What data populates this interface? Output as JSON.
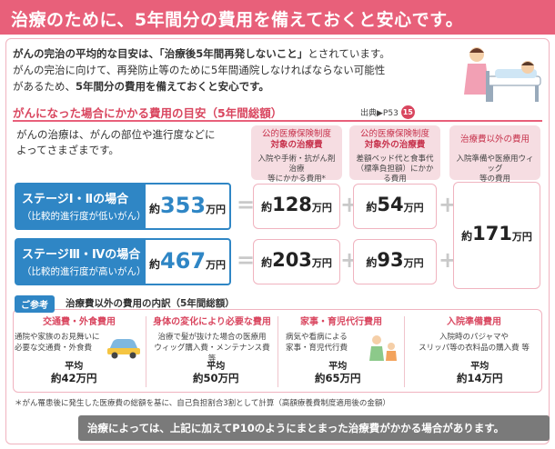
{
  "header": {
    "title": "治療のために、5年間分の費用を備えておくと安心です。"
  },
  "intro": {
    "line1_prefix": "がんの完治の平均的な目安は、",
    "line1_bold": "「治療後5年間再発しないこと」",
    "line1_suffix": "とされています。",
    "line2": "がんの完治に向けて、再発防止等のために5年間通院しなければならない可能性",
    "line3_prefix": "があるため、",
    "line3_bold": "5年間分の費用を備えておくと安心です。"
  },
  "section": {
    "title": "がんになった場合にかかる費用の目安（5年間総額）",
    "source_label": "出典▶P53",
    "source_badge": "15"
  },
  "desc": {
    "line1": "がんの治療は、がんの部位や進行度などに",
    "line2": "よってさまざまです。"
  },
  "columns": [
    {
      "title_line1": "公的医療保険制度",
      "title_line2": "対象の治療費",
      "sub_line1": "入院や手術・抗がん剤治療",
      "sub_line2": "等にかかる費用*"
    },
    {
      "title_line1": "公的医療保険制度",
      "title_line2": "対象外の治療費",
      "sub_line1": "差額ベッド代と食事代",
      "sub_line2": "（標準負担額）にかかる費用"
    },
    {
      "title_line1": "治療費以外の費用",
      "title_line2": "",
      "sub_line1": "入院準備や医療用ウィッグ",
      "sub_line2": "等の費用"
    }
  ],
  "stages": [
    {
      "name": "ステージⅠ・Ⅱの場合",
      "desc": "（比較的進行度が低いがん）",
      "total_prefix": "約",
      "total": "353",
      "total_unit": "万円",
      "col1": "128",
      "col2": "54"
    },
    {
      "name": "ステージⅢ・Ⅳの場合",
      "desc": "（比較的進行度が高いがん）",
      "total_prefix": "約",
      "total": "467",
      "total_unit": "万円",
      "col1": "203",
      "col2": "93"
    }
  ],
  "common": {
    "prefix": "約",
    "value": "171",
    "unit": "万円"
  },
  "unit": "万円",
  "approx": "約",
  "operators": {
    "equals": "=",
    "plus": "+"
  },
  "reference": {
    "label": "ご参考",
    "title": "治療費以外の費用の内訳（5年間総額）",
    "avg_label": "平均",
    "items": [
      {
        "title": "交通費・外食費用",
        "line1": "通院や家族のお見舞いに",
        "line2": "必要な交通費・外食費",
        "value": "約42万円"
      },
      {
        "title": "身体の変化により必要な費用",
        "line1": "治療で髪が抜けた場合の医療用",
        "line2": "ウィッグ購入費・メンテナンス費 等",
        "value": "約50万円"
      },
      {
        "title": "家事・育児代行費用",
        "line1": "病気や看病による",
        "line2": "家事・育児代行費",
        "value": "約65万円"
      },
      {
        "title": "入院準備費用",
        "line1": "入院時のパジャマや",
        "line2": "スリッパ等の衣料品の購入費 等",
        "value": "約14万円"
      }
    ]
  },
  "footnote": "＊がん罹患後に発生した医療費の総額を基に、自己負担割合3割として計算（高額療養費制度適用後の金額）",
  "bottom": "治療によっては、上記に加えてP10のようにまとまった治療費がかかる場合があります。",
  "colors": {
    "header": "#e8607a",
    "accent": "#d9465f",
    "stage": "#2f86c5",
    "box_border": "#f0b3bf"
  }
}
